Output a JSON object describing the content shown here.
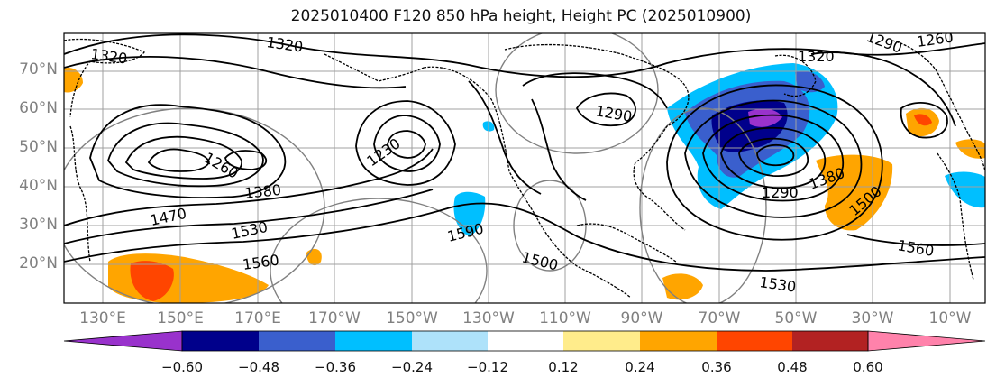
{
  "title": "2025010400 F120 850 hPa height, Height PC (2025010900)",
  "map": {
    "lat_labels": [
      "70°N",
      "60°N",
      "50°N",
      "40°N",
      "30°N",
      "20°N"
    ],
    "lon_labels": [
      "130°E",
      "150°E",
      "170°E",
      "170°W",
      "150°W",
      "130°W",
      "110°W",
      "90°W",
      "70°W",
      "50°W",
      "30°W",
      "10°W"
    ],
    "contour_labels": [
      {
        "text": "1320"
      },
      {
        "text": "1320"
      },
      {
        "text": "1320"
      },
      {
        "text": "1260"
      },
      {
        "text": "1290"
      },
      {
        "text": "1290"
      },
      {
        "text": "1260"
      },
      {
        "text": "1380"
      },
      {
        "text": "1470"
      },
      {
        "text": "1530"
      },
      {
        "text": "1560"
      },
      {
        "text": "1590"
      },
      {
        "text": "1500"
      },
      {
        "text": "1530"
      },
      {
        "text": "1560"
      },
      {
        "text": "1290"
      },
      {
        "text": "1380"
      },
      {
        "text": "1500"
      },
      {
        "text": "1230"
      }
    ],
    "colors": {
      "contour": "#000000",
      "coast": "#000000",
      "grid": "#a0a0a0",
      "circle": "#808080"
    }
  },
  "colorbar": {
    "ticks": [
      "−0.60",
      "−0.48",
      "−0.36",
      "−0.24",
      "−0.12",
      "0.12",
      "0.24",
      "0.36",
      "0.48",
      "0.60"
    ],
    "colors": [
      "#9932cc",
      "#00008b",
      "#3a5fcd",
      "#00bfff",
      "#aee2fa",
      "#ffffff",
      "#ffec8b",
      "#ffa500",
      "#ff4500",
      "#b22222",
      "#ff82ab"
    ]
  }
}
